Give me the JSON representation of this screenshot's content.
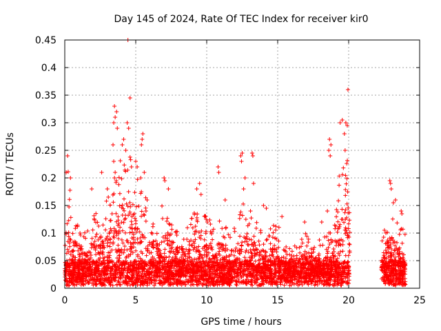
{
  "chart_data": {
    "type": "scatter",
    "title": "Day 145 of 2024, Rate Of TEC Index for receiver kir0",
    "xlabel": "GPS time / hours",
    "ylabel": "ROTI / TECUs",
    "xlim": [
      0,
      25
    ],
    "ylim": [
      0,
      0.45
    ],
    "xticks": [
      "0",
      "5",
      "10",
      "15",
      "20",
      "25"
    ],
    "yticks": [
      "0",
      "0.05",
      "0.1",
      "0.15",
      "0.2",
      "0.25",
      "0.3",
      "0.35",
      "0.4",
      "0.45"
    ],
    "grid": true,
    "marker": "+",
    "color": "#ff0000",
    "coverage": [
      [
        0,
        20.1
      ],
      [
        22.3,
        24.0
      ]
    ],
    "envelope": [
      [
        0.0,
        0.1
      ],
      [
        0.1,
        0.2
      ],
      [
        0.2,
        0.23
      ],
      [
        0.5,
        0.14
      ],
      [
        1.0,
        0.12
      ],
      [
        1.5,
        0.11
      ],
      [
        2.0,
        0.13
      ],
      [
        2.5,
        0.16
      ],
      [
        3.0,
        0.17
      ],
      [
        3.5,
        0.19
      ],
      [
        4.0,
        0.25
      ],
      [
        4.5,
        0.26
      ],
      [
        5.0,
        0.22
      ],
      [
        5.5,
        0.18
      ],
      [
        6.0,
        0.15
      ],
      [
        6.5,
        0.13
      ],
      [
        7.0,
        0.16
      ],
      [
        7.5,
        0.14
      ],
      [
        8.0,
        0.12
      ],
      [
        8.5,
        0.11
      ],
      [
        9.0,
        0.14
      ],
      [
        9.5,
        0.15
      ],
      [
        10.0,
        0.13
      ],
      [
        10.5,
        0.12
      ],
      [
        11.0,
        0.14
      ],
      [
        11.5,
        0.1
      ],
      [
        12.0,
        0.11
      ],
      [
        12.5,
        0.15
      ],
      [
        13.0,
        0.17
      ],
      [
        13.5,
        0.12
      ],
      [
        14.0,
        0.1
      ],
      [
        14.5,
        0.11
      ],
      [
        15.0,
        0.12
      ],
      [
        15.5,
        0.08
      ],
      [
        16.0,
        0.07
      ],
      [
        16.5,
        0.09
      ],
      [
        17.0,
        0.1
      ],
      [
        17.5,
        0.08
      ],
      [
        18.0,
        0.09
      ],
      [
        18.5,
        0.1
      ],
      [
        19.0,
        0.15
      ],
      [
        19.5,
        0.23
      ],
      [
        20.0,
        0.27
      ],
      [
        20.1,
        0.2
      ],
      [
        22.3,
        0.09
      ],
      [
        22.6,
        0.13
      ],
      [
        23.0,
        0.16
      ],
      [
        23.5,
        0.12
      ],
      [
        24.0,
        0.1
      ]
    ],
    "peaks": [
      {
        "x": 0.1,
        "y": 0.21
      },
      {
        "x": 0.2,
        "y": 0.24
      },
      {
        "x": 0.4,
        "y": 0.2
      },
      {
        "x": 1.9,
        "y": 0.18
      },
      {
        "x": 2.6,
        "y": 0.21
      },
      {
        "x": 3.0,
        "y": 0.18
      },
      {
        "x": 3.5,
        "y": 0.2
      },
      {
        "x": 3.55,
        "y": 0.21
      },
      {
        "x": 3.5,
        "y": 0.33
      },
      {
        "x": 3.65,
        "y": 0.32
      },
      {
        "x": 3.55,
        "y": 0.31
      },
      {
        "x": 3.7,
        "y": 0.29
      },
      {
        "x": 3.45,
        "y": 0.3
      },
      {
        "x": 3.4,
        "y": 0.26
      },
      {
        "x": 3.45,
        "y": 0.23
      },
      {
        "x": 4.05,
        "y": 0.26
      },
      {
        "x": 4.15,
        "y": 0.27
      },
      {
        "x": 4.3,
        "y": 0.25
      },
      {
        "x": 4.4,
        "y": 0.3
      },
      {
        "x": 4.5,
        "y": 0.29
      },
      {
        "x": 4.45,
        "y": 0.45
      },
      {
        "x": 4.6,
        "y": 0.345
      },
      {
        "x": 4.7,
        "y": 0.22
      },
      {
        "x": 5.0,
        "y": 0.23
      },
      {
        "x": 5.1,
        "y": 0.22
      },
      {
        "x": 5.5,
        "y": 0.28
      },
      {
        "x": 5.4,
        "y": 0.26
      },
      {
        "x": 5.45,
        "y": 0.27
      },
      {
        "x": 5.35,
        "y": 0.2
      },
      {
        "x": 5.6,
        "y": 0.21
      },
      {
        "x": 5.8,
        "y": 0.16
      },
      {
        "x": 7.0,
        "y": 0.2
      },
      {
        "x": 7.05,
        "y": 0.195
      },
      {
        "x": 7.3,
        "y": 0.18
      },
      {
        "x": 9.3,
        "y": 0.18
      },
      {
        "x": 9.5,
        "y": 0.19
      },
      {
        "x": 9.6,
        "y": 0.17
      },
      {
        "x": 10.8,
        "y": 0.22
      },
      {
        "x": 10.85,
        "y": 0.21
      },
      {
        "x": 11.3,
        "y": 0.16
      },
      {
        "x": 12.4,
        "y": 0.24
      },
      {
        "x": 12.5,
        "y": 0.245
      },
      {
        "x": 12.45,
        "y": 0.23
      },
      {
        "x": 12.7,
        "y": 0.2
      },
      {
        "x": 12.6,
        "y": 0.18
      },
      {
        "x": 13.2,
        "y": 0.245
      },
      {
        "x": 13.25,
        "y": 0.24
      },
      {
        "x": 13.3,
        "y": 0.19
      },
      {
        "x": 14.0,
        "y": 0.15
      },
      {
        "x": 14.2,
        "y": 0.145
      },
      {
        "x": 15.3,
        "y": 0.13
      },
      {
        "x": 16.9,
        "y": 0.12
      },
      {
        "x": 18.1,
        "y": 0.12
      },
      {
        "x": 18.5,
        "y": 0.14
      },
      {
        "x": 18.6,
        "y": 0.25
      },
      {
        "x": 18.65,
        "y": 0.27
      },
      {
        "x": 18.7,
        "y": 0.24
      },
      {
        "x": 18.75,
        "y": 0.26
      },
      {
        "x": 19.4,
        "y": 0.3
      },
      {
        "x": 19.55,
        "y": 0.305
      },
      {
        "x": 19.7,
        "y": 0.28
      },
      {
        "x": 19.8,
        "y": 0.3
      },
      {
        "x": 19.9,
        "y": 0.295
      },
      {
        "x": 19.95,
        "y": 0.36
      },
      {
        "x": 19.75,
        "y": 0.25
      },
      {
        "x": 22.9,
        "y": 0.195
      },
      {
        "x": 22.95,
        "y": 0.19
      },
      {
        "x": 23.0,
        "y": 0.18
      },
      {
        "x": 23.15,
        "y": 0.155
      },
      {
        "x": 23.3,
        "y": 0.16
      },
      {
        "x": 23.7,
        "y": 0.14
      },
      {
        "x": 23.75,
        "y": 0.135
      }
    ]
  }
}
